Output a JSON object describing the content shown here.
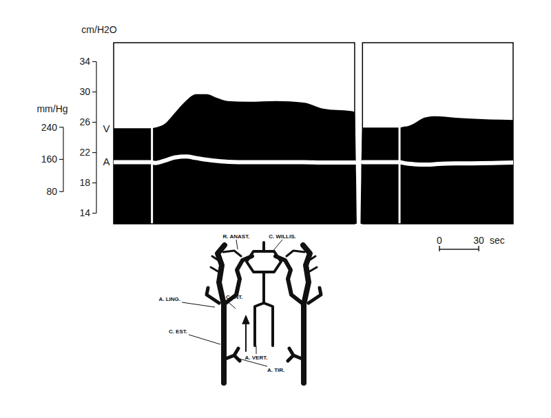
{
  "chart_data": {
    "type": "line",
    "x": [
      0,
      28,
      31.6,
      39,
      47,
      55,
      63,
      71,
      79,
      87,
      103,
      124,
      145,
      160,
      184,
      187,
      190,
      218,
      221,
      225,
      229,
      237,
      240,
      245,
      261,
      270,
      305
    ],
    "xlim": [
      0,
      305
    ],
    "ylim": [
      12.6,
      36.5
    ],
    "yticks": [
      14,
      18,
      22,
      26,
      30,
      34
    ],
    "y_label": "cm/H2O",
    "y2lim": [
      0,
      450
    ],
    "y2ticks": [
      80,
      160,
      240
    ],
    "y2_label": "mm/Hg",
    "tick_labels": "y",
    "series": [
      {
        "name": "V",
        "color": "#000000",
        "type": "area",
        "values": [
          25.2,
          25.2,
          25.3,
          25.8,
          27.3,
          28.8,
          29.7,
          29.7,
          29.2,
          28.8,
          28.7,
          28.8,
          28.6,
          27.8,
          27.4,
          null,
          25.3,
          25.3,
          25.4,
          25.5,
          25.8,
          26.6,
          26.7,
          26.8,
          26.6,
          26.5,
          26.3
        ]
      },
      {
        "name": "A",
        "color": "#ffffff",
        "type": "line",
        "axis": "y2",
        "values": [
          154,
          154,
          152,
          158,
          166,
          168,
          164,
          160,
          157,
          155,
          154,
          154,
          154,
          153,
          153,
          null,
          154,
          154,
          152,
          150,
          149,
          148,
          148,
          149,
          151,
          151,
          153
        ]
      }
    ],
    "markers": [
      29,
      218
    ],
    "panels": [
      [
        0,
        184
      ],
      [
        190,
        305
      ]
    ],
    "scale_bar": {
      "ticks": [
        0,
        30
      ],
      "unit": "sec"
    }
  },
  "diagram": {
    "labels": [
      "R. ANAST.",
      "C. WILLIS.",
      "A. LING.",
      "C. INT.",
      "C. EST.",
      "A. VERT.",
      "A. TIR."
    ]
  }
}
